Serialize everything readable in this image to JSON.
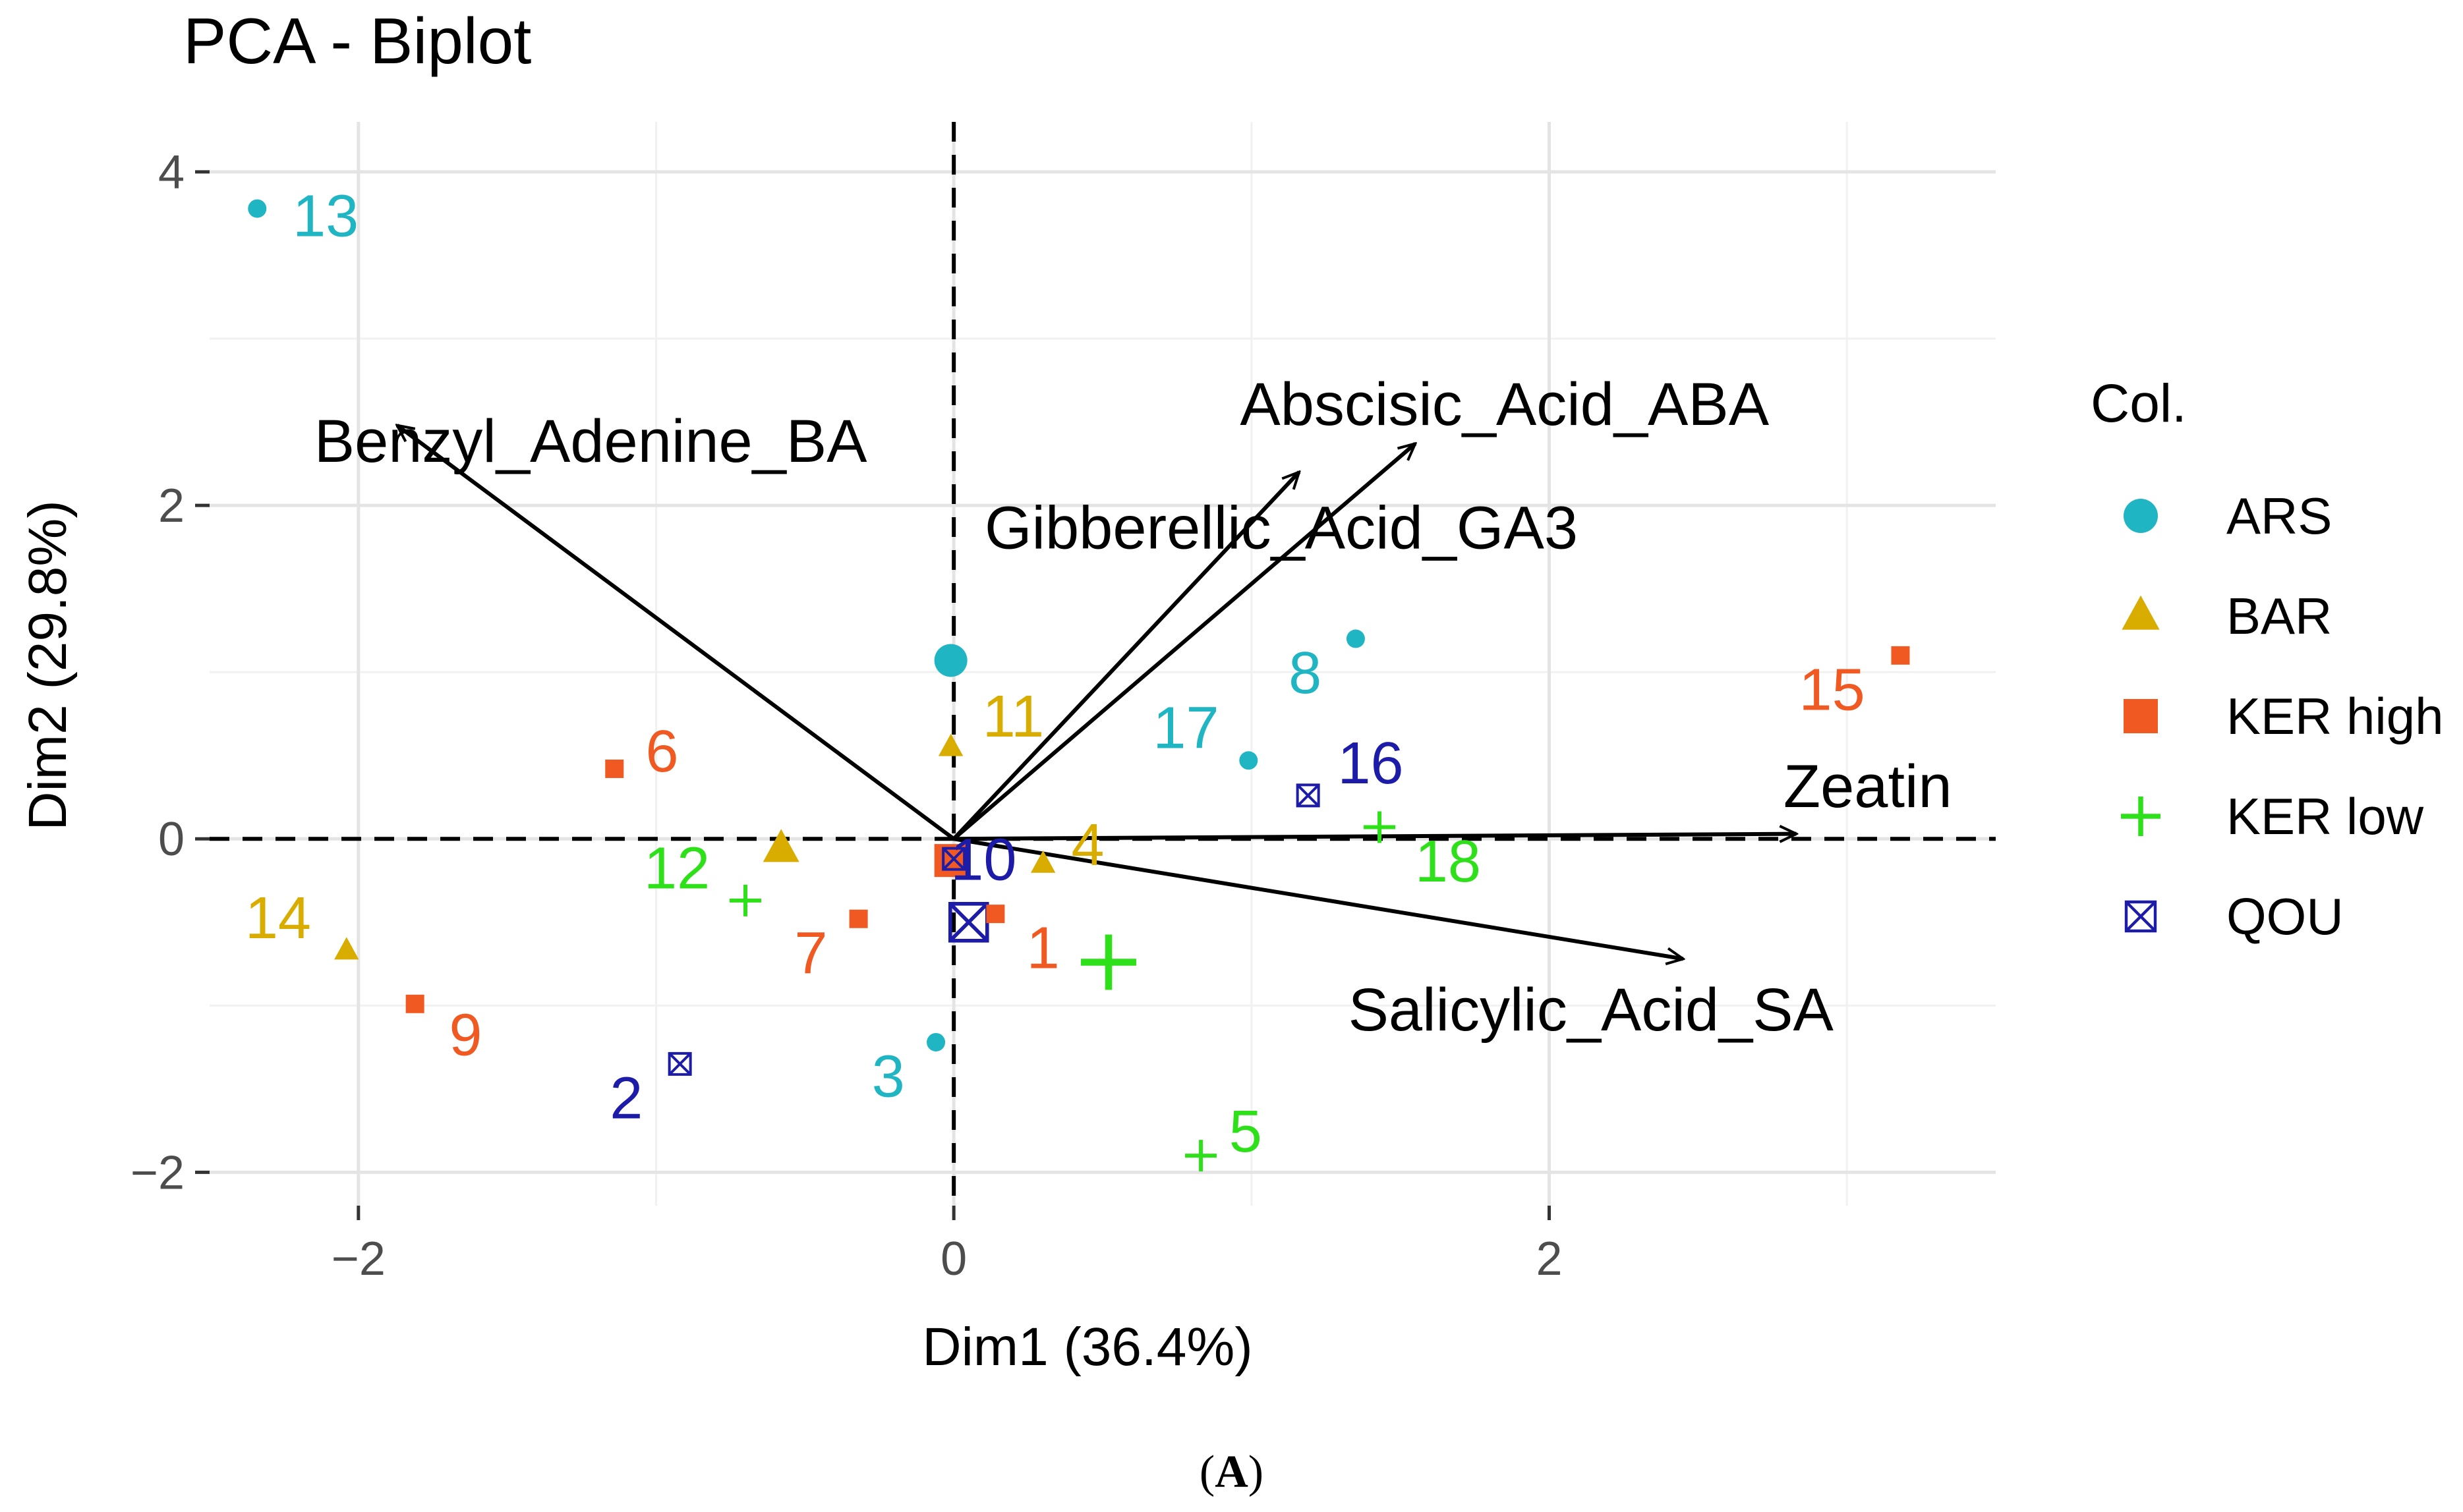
{
  "chart_data": {
    "type": "scatter",
    "subtype": "pca-biplot",
    "title": "PCA - Biplot",
    "xlabel": "Dim1 (36.4%)",
    "ylabel": "Dim2 (29.8%)",
    "xlim": [
      -2.5,
      3.5
    ],
    "ylim": [
      -2.2,
      4.3
    ],
    "xticks": [
      -2,
      0,
      2
    ],
    "yticks": [
      -2,
      0,
      2,
      4
    ],
    "xtick_labels": [
      "−2",
      "0",
      "2"
    ],
    "ytick_labels": [
      "−2",
      "0",
      "2",
      "4"
    ],
    "grid": true,
    "legend_title": "Col.",
    "legend_position": "right",
    "groups": [
      {
        "name": "ARS",
        "color": "#1fb5c3",
        "shape": "circle"
      },
      {
        "name": "BAR",
        "color": "#d9ac00",
        "shape": "triangle"
      },
      {
        "name": "KER high",
        "color": "#f05a22",
        "shape": "square"
      },
      {
        "name": "KER low",
        "color": "#2ee01a",
        "shape": "plus"
      },
      {
        "name": "QOU",
        "color": "#1c1ca8",
        "shape": "boxx"
      }
    ],
    "points": [
      {
        "label": "1",
        "group": "KER high",
        "x": 0.14,
        "y": -0.45,
        "lx": 0.3,
        "ly": -0.65
      },
      {
        "label": "2",
        "group": "QOU",
        "x": -0.92,
        "y": -1.35,
        "lx": -1.1,
        "ly": -1.55
      },
      {
        "label": "3",
        "group": "ARS",
        "x": -0.06,
        "y": -1.22,
        "lx": -0.22,
        "ly": -1.42
      },
      {
        "label": "4",
        "group": "BAR",
        "x": 0.3,
        "y": -0.15,
        "lx": 0.45,
        "ly": -0.03
      },
      {
        "label": "5",
        "group": "KER low",
        "x": 0.83,
        "y": -1.9,
        "lx": 0.98,
        "ly": -1.75
      },
      {
        "label": "6",
        "group": "KER high",
        "x": -1.14,
        "y": 0.42,
        "lx": -0.98,
        "ly": 0.53
      },
      {
        "label": "7",
        "group": "KER high",
        "x": -0.32,
        "y": -0.48,
        "lx": -0.48,
        "ly": -0.68
      },
      {
        "label": "8",
        "group": "ARS",
        "x": 1.35,
        "y": 1.2,
        "lx": 1.18,
        "ly": 1.0
      },
      {
        "label": "9",
        "group": "KER high",
        "x": -1.81,
        "y": -0.99,
        "lx": -1.64,
        "ly": -1.17
      },
      {
        "label": "10",
        "group": "QOU",
        "x": 0.0,
        "y": -0.12,
        "lx": 0.1,
        "ly": -0.12
      },
      {
        "label": "11",
        "group": "BAR",
        "x": -0.01,
        "y": 0.55,
        "lx": 0.2,
        "ly": 0.74
      },
      {
        "label": "12",
        "group": "KER low",
        "x": -0.7,
        "y": -0.37,
        "lx": -0.93,
        "ly": -0.17
      },
      {
        "label": "13",
        "group": "ARS",
        "x": -2.34,
        "y": 3.78,
        "lx": -2.11,
        "ly": 3.74
      },
      {
        "label": "14",
        "group": "BAR",
        "x": -2.04,
        "y": -0.67,
        "lx": -2.27,
        "ly": -0.47
      },
      {
        "label": "15",
        "group": "KER high",
        "x": 3.18,
        "y": 1.1,
        "lx": 2.95,
        "ly": 0.9
      },
      {
        "label": "16",
        "group": "QOU",
        "x": 1.19,
        "y": 0.26,
        "lx": 1.4,
        "ly": 0.46
      },
      {
        "label": "17",
        "group": "ARS",
        "x": 0.99,
        "y": 0.47,
        "lx": 0.78,
        "ly": 0.67
      },
      {
        "label": "18",
        "group": "KER low",
        "x": 1.43,
        "y": 0.07,
        "lx": 1.66,
        "ly": -0.13
      }
    ],
    "centroids": [
      {
        "group": "ARS",
        "x": -0.01,
        "y": 1.07
      },
      {
        "group": "BAR",
        "x": -0.58,
        "y": -0.06
      },
      {
        "group": "KER high",
        "x": -0.01,
        "y": -0.13
      },
      {
        "group": "KER low",
        "x": 0.52,
        "y": -0.74
      },
      {
        "group": "QOU",
        "x": 0.05,
        "y": -0.5
      }
    ],
    "variables": [
      {
        "name": "Benzyl_Adenine_BA",
        "x": -1.87,
        "y": 2.48,
        "lx": -1.22,
        "ly": 2.38
      },
      {
        "name": "Abscisic_Acid_ABA",
        "x": 1.55,
        "y": 2.37,
        "lx": 1.85,
        "ly": 2.6
      },
      {
        "name": "Gibberellic_Acid_GA3",
        "x": 1.16,
        "y": 2.2,
        "lx": 1.1,
        "ly": 1.86
      },
      {
        "name": "Zeatin",
        "x": 2.83,
        "y": 0.03,
        "lx": 3.07,
        "ly": 0.31
      },
      {
        "name": "Salicylic_Acid_SA",
        "x": 2.45,
        "y": -0.72,
        "lx": 2.14,
        "ly": -1.03
      }
    ]
  },
  "panel": {
    "label_open": "(",
    "label_letter": "A",
    "label_close": ")"
  }
}
